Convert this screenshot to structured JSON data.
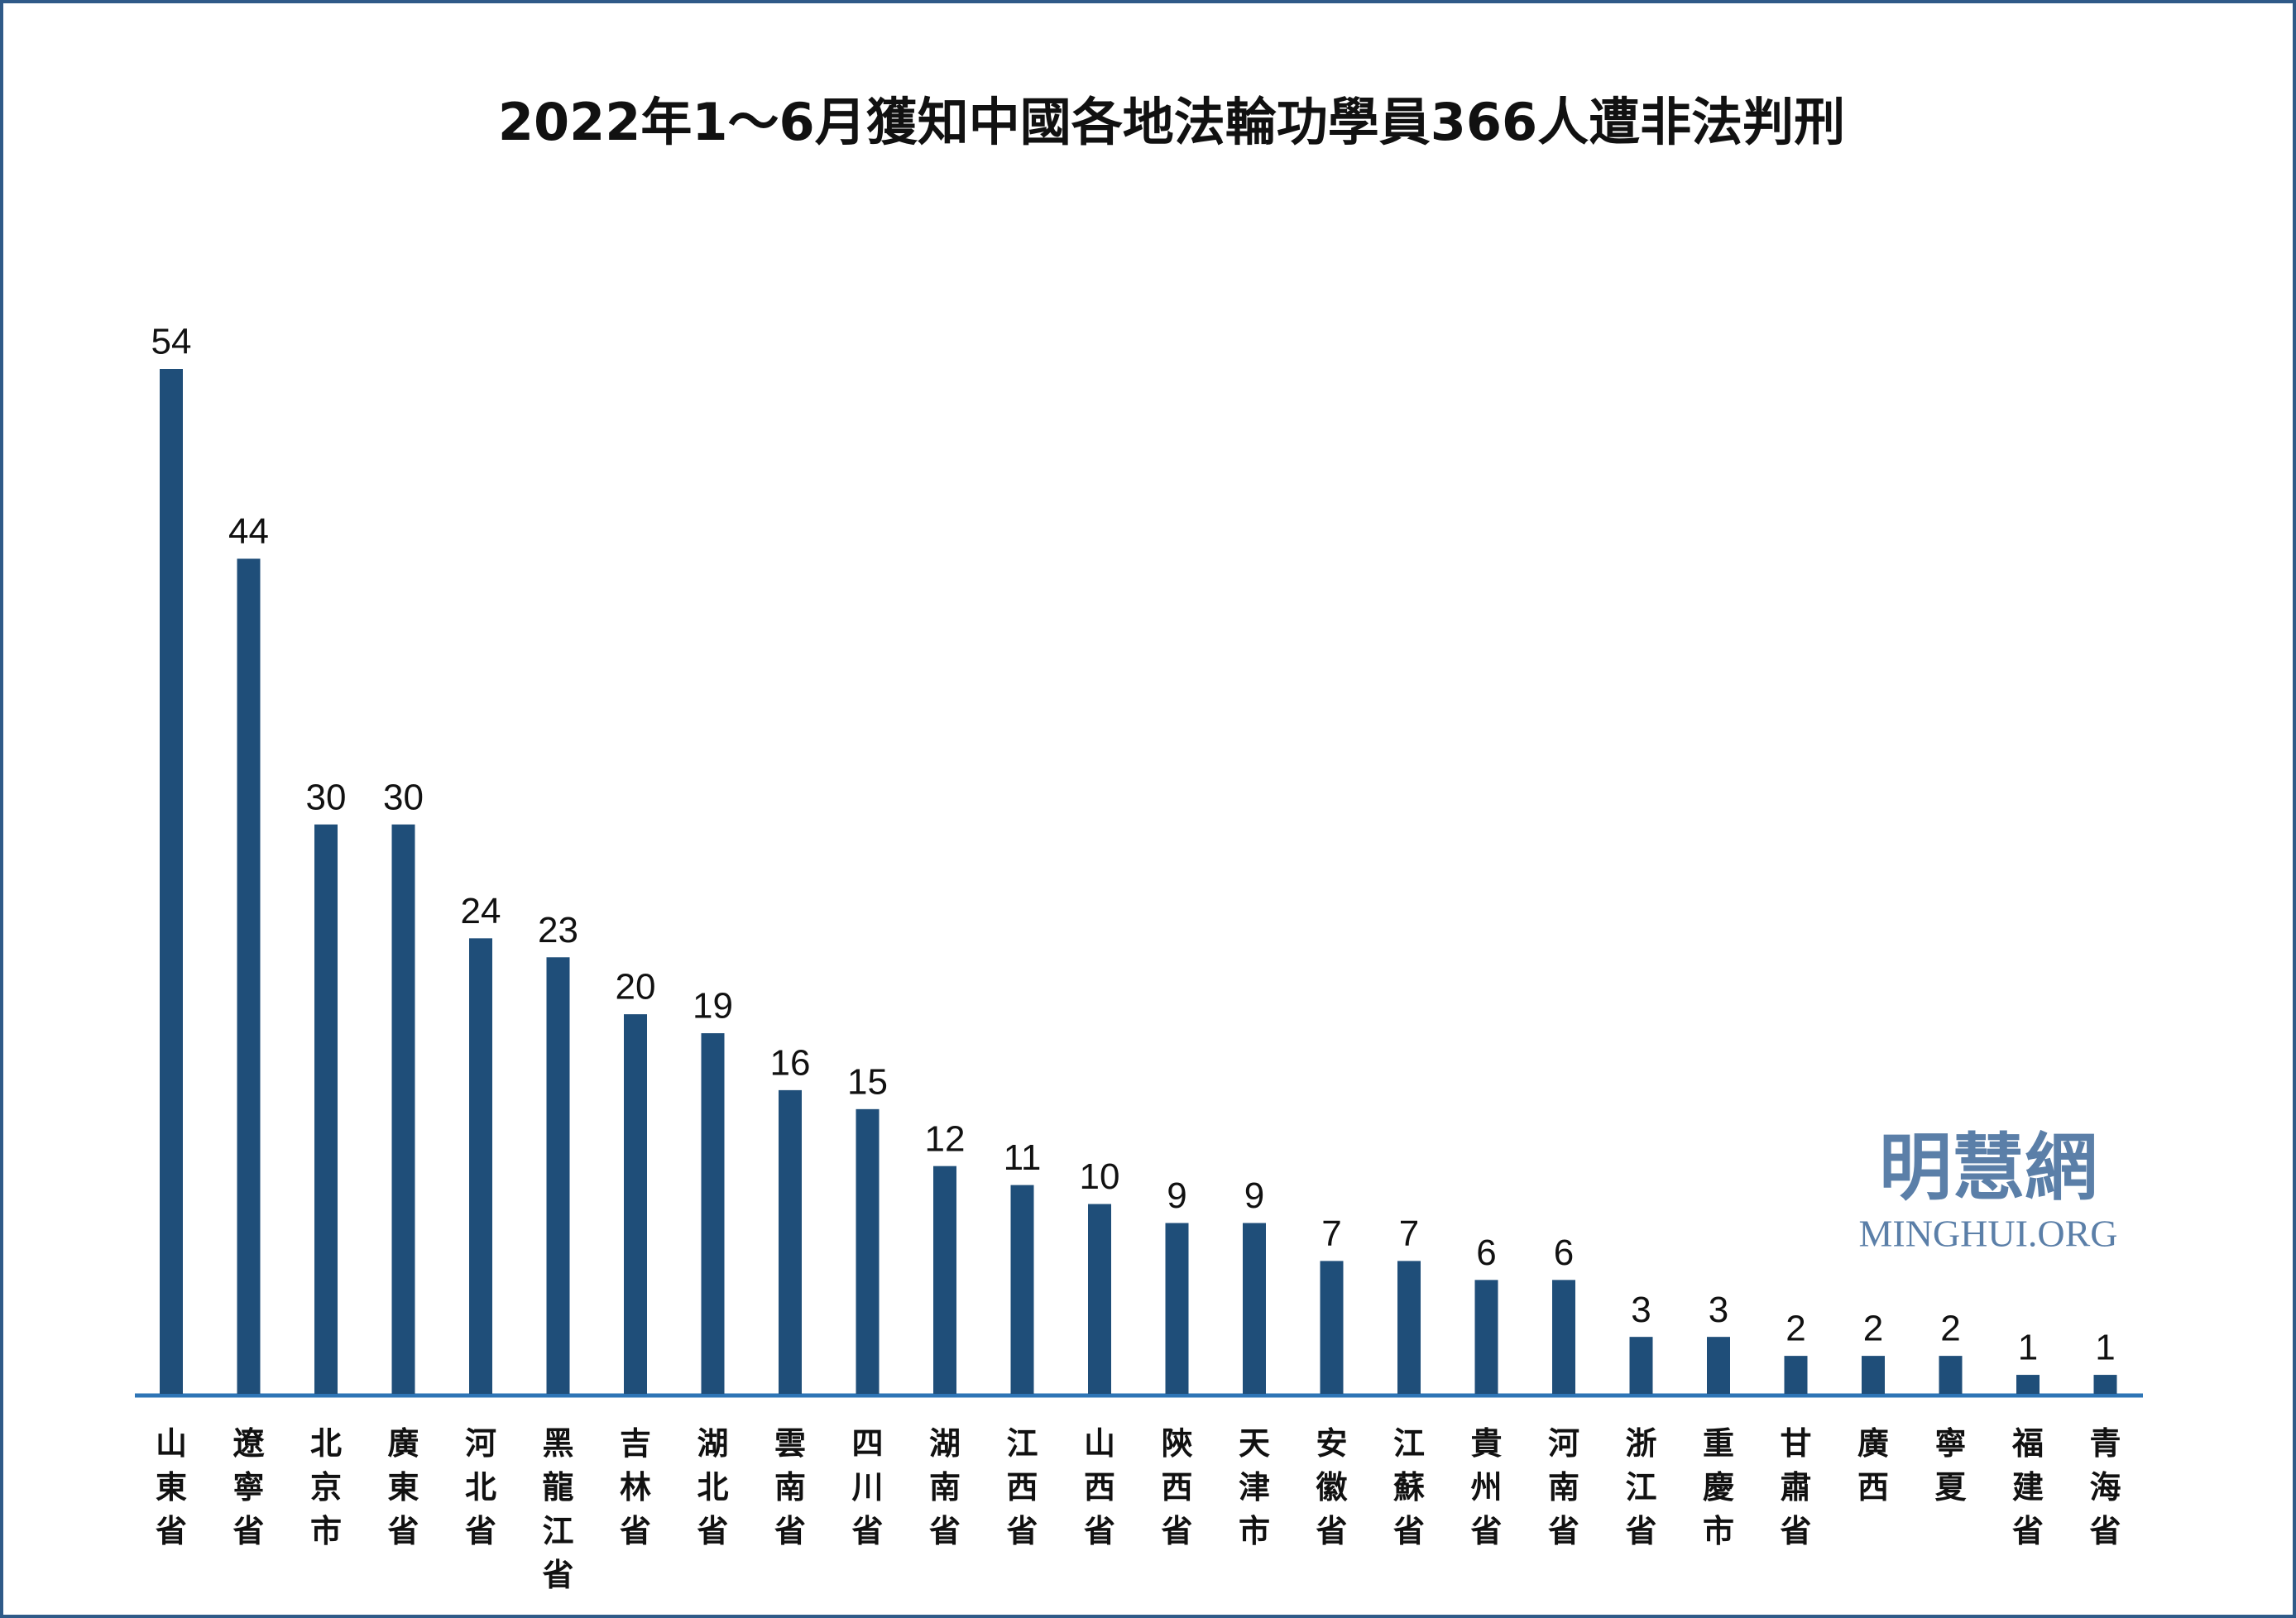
{
  "chart_data": {
    "type": "bar",
    "title": "2022年1～6月獲知中國各地法輪功學員366人遭非法判刑",
    "categories": [
      "山東省",
      "遼寧省",
      "北京市",
      "廣東省",
      "河北省",
      "黑龍江省",
      "吉林省",
      "湖北省",
      "雲南省",
      "四川省",
      "湖南省",
      "江西省",
      "山西省",
      "陝西省",
      "天津市",
      "安徽省",
      "江蘇省",
      "貴州省",
      "河南省",
      "浙江省",
      "重慶市",
      "甘肅省",
      "廣西",
      "寧夏",
      "福建省",
      "青海省"
    ],
    "values": [
      54,
      44,
      30,
      30,
      24,
      23,
      20,
      19,
      16,
      15,
      12,
      11,
      10,
      9,
      9,
      7,
      7,
      6,
      6,
      3,
      3,
      2,
      2,
      2,
      1,
      1
    ],
    "color": "#1f4e79",
    "watermark": "明慧網",
    "watermark_url": "MINGHUI.ORG"
  }
}
